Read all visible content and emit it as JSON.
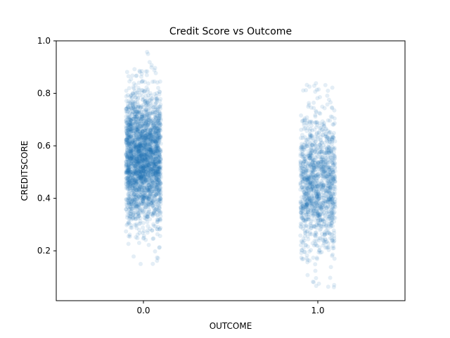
{
  "chart_data": {
    "type": "scatter",
    "title": "Credit Score vs Outcome",
    "xlabel": "OUTCOME",
    "ylabel": "CREDITSCORE",
    "categories": [
      "0.0",
      "1.0"
    ],
    "ylim": [
      0.01,
      1.0
    ],
    "yticks": [
      "0.2",
      "0.4",
      "0.6",
      "0.8",
      "1.0"
    ],
    "grid": false,
    "legend": "none",
    "point_color": "#1f77b4",
    "point_alpha": 0.12,
    "series": [
      {
        "category": "0.0",
        "count": 2600,
        "mean": 0.55,
        "std": 0.125,
        "min": 0.065,
        "max": 0.96
      },
      {
        "category": "1.0",
        "count": 1300,
        "mean": 0.45,
        "std": 0.13,
        "min": 0.055,
        "max": 0.855
      }
    ]
  }
}
